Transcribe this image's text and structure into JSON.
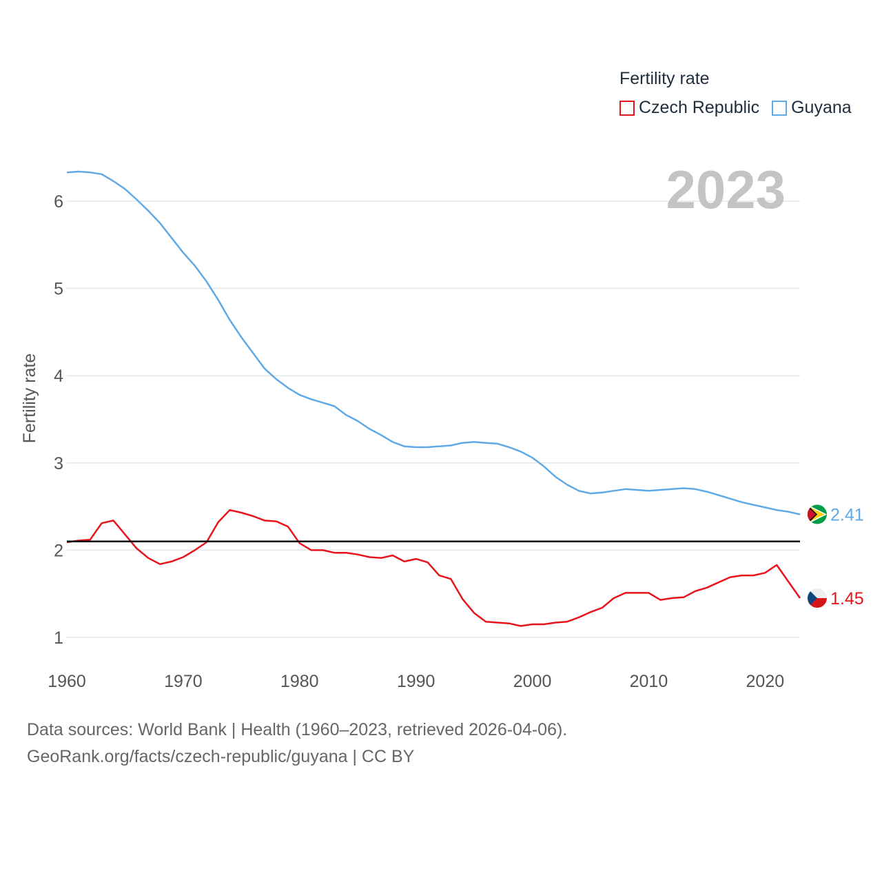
{
  "legend": {
    "title": "Fertility rate",
    "czech_label": "Czech Republic",
    "guyana_label": "Guyana"
  },
  "year_display": "2023",
  "sources": {
    "line1": "Data sources: World Bank | Health (1960–2023, retrieved 2026-04-06).",
    "line2": "GeoRank.org/facts/czech-republic/guyana | CC BY"
  },
  "chart_data": {
    "type": "line",
    "title": "Fertility rate",
    "xlabel": "",
    "ylabel": "Fertility rate",
    "xlim": [
      1960,
      2023
    ],
    "ylim": [
      0.7,
      6.7
    ],
    "yticks": [
      1,
      2,
      3,
      4,
      5,
      6
    ],
    "xticks": [
      1960,
      1970,
      1980,
      1990,
      2000,
      2010,
      2020
    ],
    "grid": true,
    "reference_line": 2.1,
    "x": [
      1960,
      1961,
      1962,
      1963,
      1964,
      1965,
      1966,
      1967,
      1968,
      1969,
      1970,
      1971,
      1972,
      1973,
      1974,
      1975,
      1976,
      1977,
      1978,
      1979,
      1980,
      1981,
      1982,
      1983,
      1984,
      1985,
      1986,
      1987,
      1988,
      1989,
      1990,
      1991,
      1992,
      1993,
      1994,
      1995,
      1996,
      1997,
      1998,
      1999,
      2000,
      2001,
      2002,
      2003,
      2004,
      2005,
      2006,
      2007,
      2008,
      2009,
      2010,
      2011,
      2012,
      2013,
      2014,
      2015,
      2016,
      2017,
      2018,
      2019,
      2020,
      2021,
      2022,
      2023
    ],
    "series": [
      {
        "name": "Czech Republic",
        "color": "#e8141c",
        "end_label": "1.45",
        "values": [
          2.09,
          2.11,
          2.12,
          2.31,
          2.34,
          2.18,
          2.02,
          1.91,
          1.84,
          1.87,
          1.92,
          2.0,
          2.09,
          2.32,
          2.46,
          2.43,
          2.39,
          2.34,
          2.33,
          2.27,
          2.08,
          2.0,
          2.0,
          1.97,
          1.97,
          1.95,
          1.92,
          1.91,
          1.94,
          1.87,
          1.9,
          1.86,
          1.71,
          1.67,
          1.44,
          1.28,
          1.18,
          1.17,
          1.16,
          1.13,
          1.15,
          1.15,
          1.17,
          1.18,
          1.23,
          1.29,
          1.34,
          1.45,
          1.51,
          1.51,
          1.51,
          1.43,
          1.45,
          1.46,
          1.53,
          1.57,
          1.63,
          1.69,
          1.71,
          1.71,
          1.74,
          1.83,
          1.64,
          1.45
        ]
      },
      {
        "name": "Guyana",
        "color": "#5ea9e6",
        "end_label": "2.41",
        "values": [
          6.33,
          6.34,
          6.33,
          6.31,
          6.23,
          6.14,
          6.02,
          5.89,
          5.75,
          5.58,
          5.41,
          5.26,
          5.08,
          4.87,
          4.64,
          4.44,
          4.26,
          4.08,
          3.96,
          3.86,
          3.78,
          3.73,
          3.69,
          3.65,
          3.55,
          3.48,
          3.39,
          3.32,
          3.24,
          3.19,
          3.18,
          3.18,
          3.19,
          3.2,
          3.23,
          3.24,
          3.23,
          3.22,
          3.18,
          3.13,
          3.06,
          2.96,
          2.84,
          2.75,
          2.68,
          2.65,
          2.66,
          2.68,
          2.7,
          2.69,
          2.68,
          2.69,
          2.7,
          2.71,
          2.7,
          2.67,
          2.63,
          2.59,
          2.55,
          2.52,
          2.49,
          2.46,
          2.44,
          2.41
        ]
      }
    ]
  }
}
